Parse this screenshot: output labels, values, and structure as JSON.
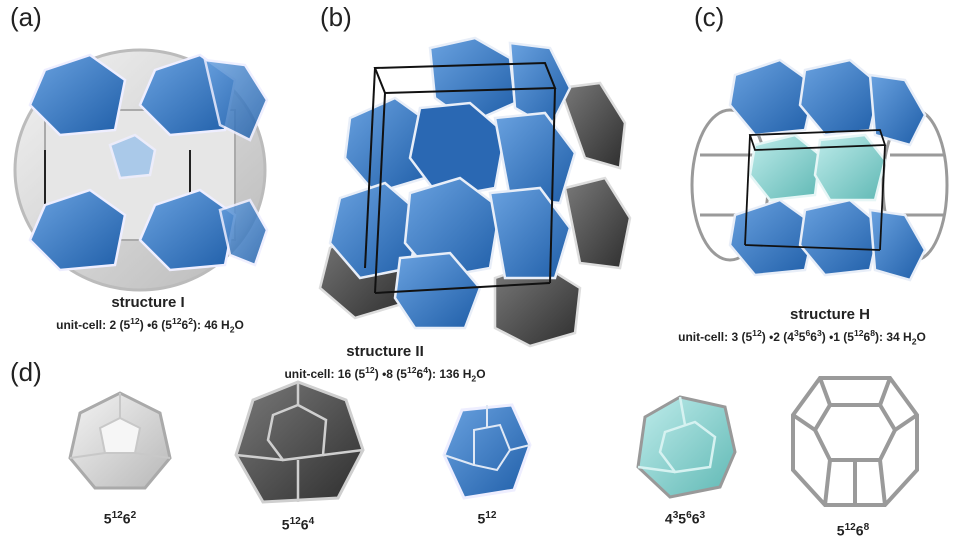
{
  "panels": {
    "a": {
      "label": "(a)",
      "title": "structure I",
      "formula": [
        "unit-cell: 2 (5",
        "12",
        ") •6 (5",
        "12",
        "6",
        "2",
        "): 46 H",
        "2",
        "O"
      ]
    },
    "b": {
      "label": "(b)",
      "title": "structure II",
      "formula": [
        "unit-cell: 16 (5",
        "12",
        ") •8 (5",
        "12",
        "6",
        "4",
        "): 136 H",
        "2",
        "O"
      ]
    },
    "c": {
      "label": "(c)",
      "title": "structure H",
      "formula": [
        "unit-cell: 3 (5",
        "12",
        ") •2 (4",
        "3",
        "5",
        "6",
        "6",
        "3",
        ") •1 (5",
        "12",
        "6",
        "8",
        "): 34 H",
        "2",
        "O"
      ]
    },
    "d": {
      "label": "(d)",
      "cages": [
        {
          "base": [
            "5",
            "12",
            "6",
            "2"
          ]
        },
        {
          "base": [
            "5",
            "12",
            "6",
            "4"
          ]
        },
        {
          "base": [
            "5",
            "12"
          ]
        },
        {
          "base": [
            "4",
            "3",
            "5",
            "6",
            "6",
            "3"
          ]
        },
        {
          "base": [
            "5",
            "12",
            "6",
            "8"
          ]
        }
      ]
    }
  },
  "colors": {
    "blue": "#3a78c4",
    "blue_dark": "#1f5ea8",
    "gray_light": "#d8d8d8",
    "gray_dark": "#4a4a4a",
    "cyan": "#8fd6d2",
    "edge": "#efefef",
    "wire": "#9a9a9a"
  }
}
